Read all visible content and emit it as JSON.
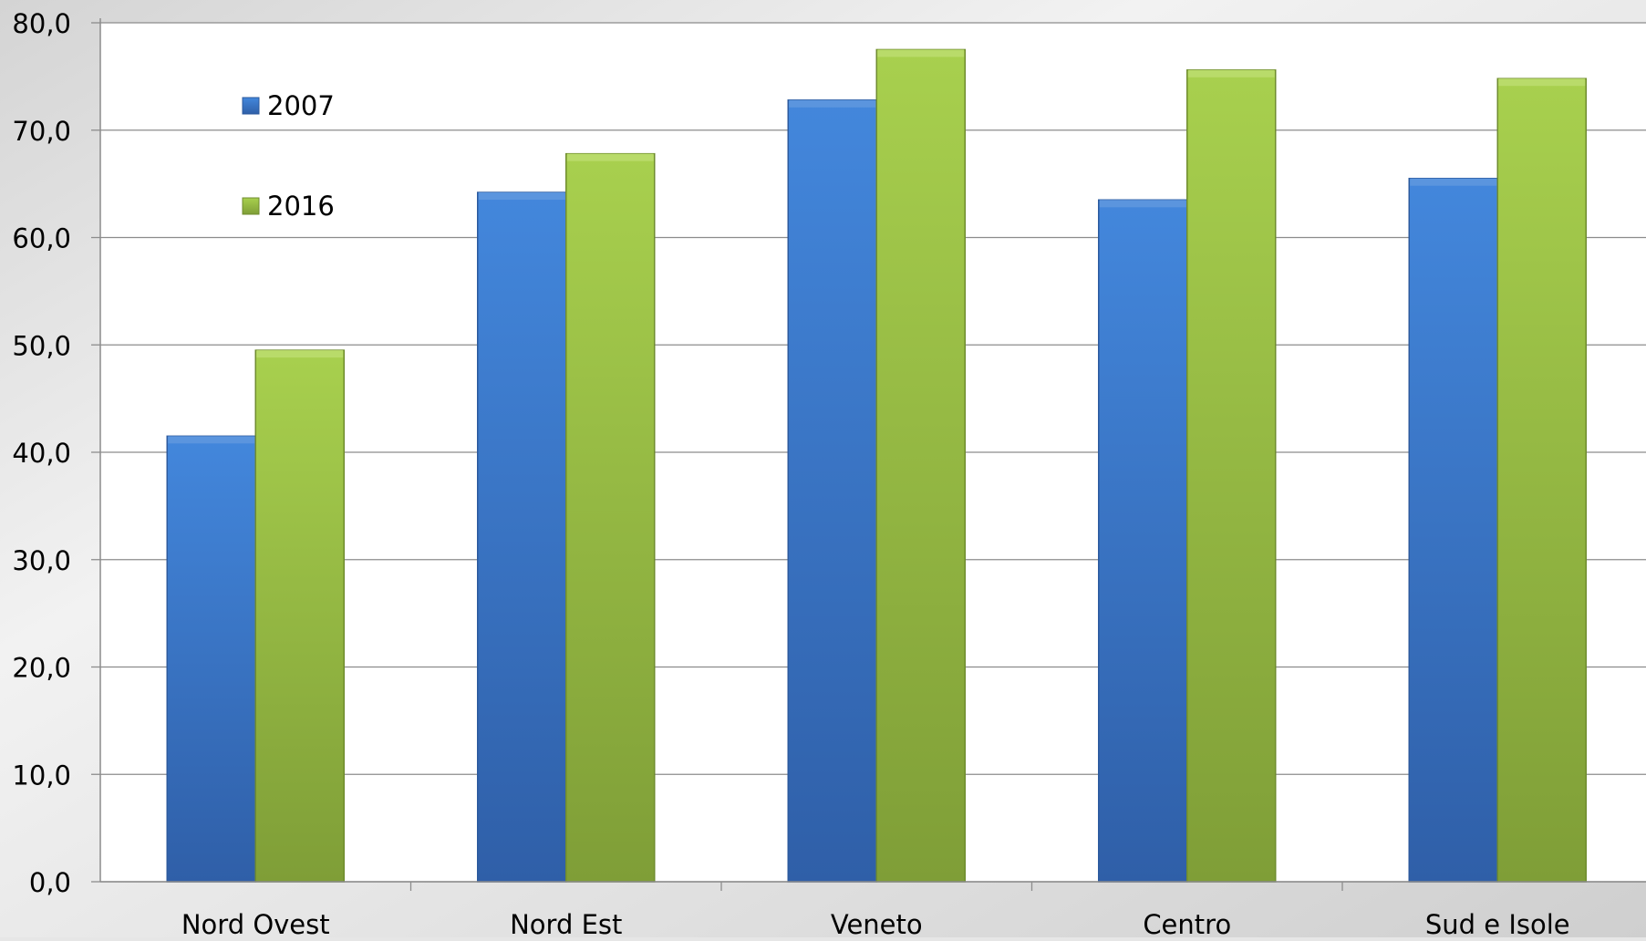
{
  "chart_data": {
    "type": "bar",
    "categories": [
      "Nord Ovest",
      "Nord Est",
      "Veneto",
      "Centro",
      "Sud e Isole"
    ],
    "series": [
      {
        "name": "2007",
        "values": [
          41.5,
          64.2,
          72.8,
          63.5,
          65.5
        ]
      },
      {
        "name": "2016",
        "values": [
          49.5,
          67.8,
          77.5,
          75.6,
          74.8
        ]
      }
    ],
    "y_ticks": [
      "0,0",
      "10,0",
      "20,0",
      "30,0",
      "40,0",
      "50,0",
      "60,0",
      "70,0",
      "80,0"
    ],
    "ylim": [
      0,
      80
    ],
    "grid": true,
    "legend_position": "top-left",
    "colors": {
      "2007": "#3a76cc",
      "2016": "#9cc445"
    }
  }
}
